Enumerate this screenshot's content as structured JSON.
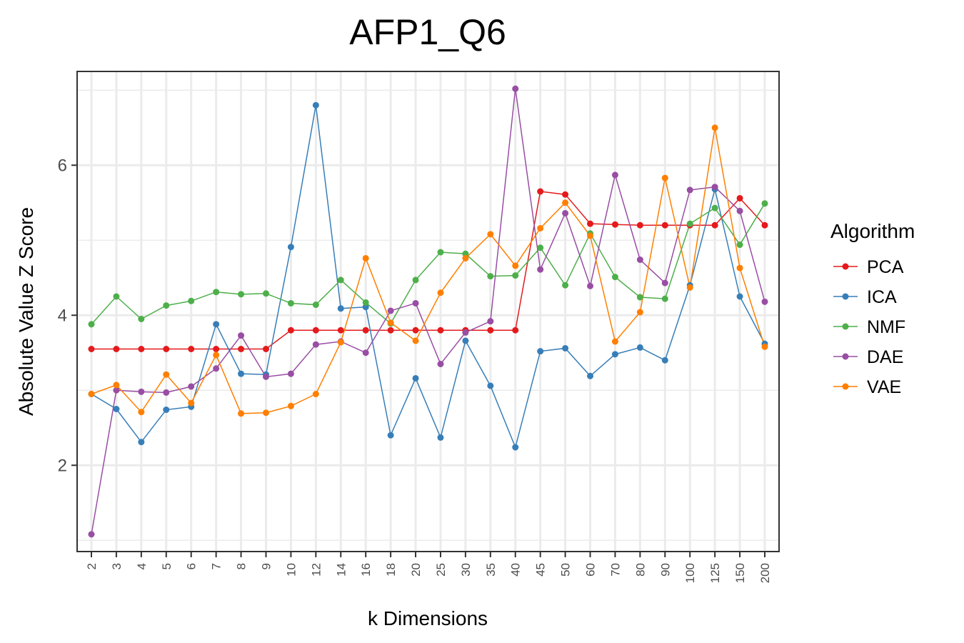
{
  "chart_data": {
    "type": "line",
    "title": "AFP1_Q6",
    "xlabel": "k Dimensions",
    "ylabel": "Absolute Value Z Score",
    "categories": [
      "2",
      "3",
      "4",
      "5",
      "6",
      "7",
      "8",
      "9",
      "10",
      "12",
      "14",
      "16",
      "18",
      "20",
      "25",
      "30",
      "35",
      "40",
      "45",
      "50",
      "60",
      "70",
      "80",
      "90",
      "100",
      "125",
      "150",
      "200"
    ],
    "y_ticks": [
      2,
      4,
      6
    ],
    "ylim": [
      0.85,
      7.25
    ],
    "grid": true,
    "legend_title": "Algorithm",
    "legend_position": "right",
    "series": [
      {
        "name": "PCA",
        "color": "#e41a1c",
        "values": [
          3.55,
          3.55,
          3.55,
          3.55,
          3.55,
          3.55,
          3.55,
          3.55,
          3.8,
          3.8,
          3.8,
          3.8,
          3.8,
          3.8,
          3.8,
          3.8,
          3.8,
          3.8,
          5.65,
          5.61,
          5.22,
          5.21,
          5.2,
          5.2,
          5.2,
          5.2,
          5.56,
          5.2
        ]
      },
      {
        "name": "ICA",
        "color": "#377eb8",
        "values": [
          2.95,
          2.75,
          2.31,
          2.74,
          2.78,
          3.88,
          3.22,
          3.21,
          4.91,
          6.8,
          4.09,
          4.11,
          2.4,
          3.16,
          2.37,
          3.66,
          3.06,
          2.24,
          3.52,
          3.56,
          3.19,
          3.48,
          3.57,
          3.4,
          4.4,
          5.68,
          4.25,
          3.62
        ]
      },
      {
        "name": "NMF",
        "color": "#4daf4a",
        "values": [
          3.88,
          4.25,
          3.95,
          4.13,
          4.19,
          4.31,
          4.28,
          4.29,
          4.16,
          4.14,
          4.47,
          4.17,
          3.89,
          4.47,
          4.84,
          4.82,
          4.52,
          4.53,
          4.9,
          4.4,
          5.09,
          4.51,
          4.24,
          4.22,
          5.22,
          5.43,
          4.94,
          5.49
        ]
      },
      {
        "name": "DAE",
        "color": "#984ea3",
        "values": [
          1.08,
          3.0,
          2.98,
          2.97,
          3.05,
          3.29,
          3.73,
          3.18,
          3.22,
          3.61,
          3.65,
          3.5,
          4.06,
          4.16,
          3.35,
          3.77,
          3.92,
          7.02,
          4.61,
          5.36,
          4.39,
          5.87,
          4.74,
          4.43,
          5.67,
          5.71,
          5.39,
          4.18
        ]
      },
      {
        "name": "VAE",
        "color": "#ff7f00",
        "values": [
          2.95,
          3.07,
          2.71,
          3.21,
          2.83,
          3.47,
          2.69,
          2.7,
          2.79,
          2.95,
          3.64,
          4.76,
          3.9,
          3.66,
          4.3,
          4.76,
          5.08,
          4.66,
          5.16,
          5.5,
          5.06,
          3.65,
          4.04,
          5.83,
          4.37,
          6.5,
          4.63,
          3.58
        ]
      }
    ]
  }
}
